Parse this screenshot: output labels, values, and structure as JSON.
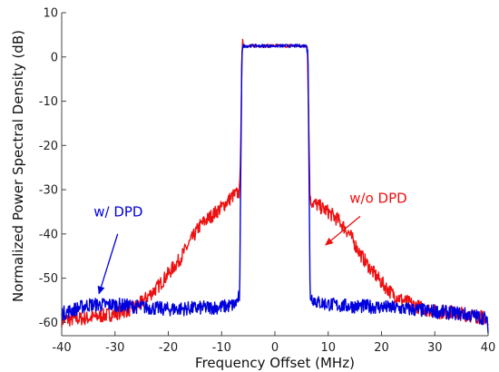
{
  "chart_data": {
    "type": "line",
    "title": "",
    "xlabel": "Frequency Offset (MHz)",
    "ylabel": "Normalized Power Spectral Density (dB)",
    "xlim": [
      -40,
      40
    ],
    "ylim": [
      -63,
      10
    ],
    "xticks": [
      -40,
      -30,
      -20,
      -10,
      0,
      10,
      20,
      30,
      40
    ],
    "yticks": [
      10,
      0,
      -10,
      -20,
      -30,
      -40,
      -50,
      -60
    ],
    "grid": false,
    "series": [
      {
        "name": "w/o DPD",
        "color": "#ee1111",
        "points": [
          [
            -40,
            -59.5
          ],
          [
            -35,
            -59
          ],
          [
            -30,
            -58
          ],
          [
            -27,
            -57
          ],
          [
            -25,
            -55.5
          ],
          [
            -22,
            -52
          ],
          [
            -20,
            -49
          ],
          [
            -18,
            -46
          ],
          [
            -16,
            -42
          ],
          [
            -14,
            -38
          ],
          [
            -12,
            -36
          ],
          [
            -10,
            -34
          ],
          [
            -8,
            -31.5
          ],
          [
            -6.6,
            -30.5
          ],
          [
            -6.1,
            2.5
          ],
          [
            6.1,
            2.5
          ],
          [
            6.6,
            -32.5
          ],
          [
            8,
            -33.5
          ],
          [
            10,
            -35
          ],
          [
            12,
            -37
          ],
          [
            14,
            -40
          ],
          [
            16,
            -44.5
          ],
          [
            18,
            -48
          ],
          [
            20,
            -51
          ],
          [
            22,
            -53.5
          ],
          [
            24,
            -55
          ],
          [
            27,
            -56.5
          ],
          [
            30,
            -57.5
          ],
          [
            35,
            -58
          ],
          [
            39.5,
            -59
          ],
          [
            40,
            -61
          ]
        ]
      },
      {
        "name": "w/ DPD",
        "color": "#0000dd",
        "points": [
          [
            -40,
            -58
          ],
          [
            -35,
            -56
          ],
          [
            -30,
            -56
          ],
          [
            -25,
            -56.5
          ],
          [
            -20,
            -57
          ],
          [
            -15,
            -56.8
          ],
          [
            -10,
            -56.5
          ],
          [
            -7.5,
            -56
          ],
          [
            -6.6,
            -54
          ],
          [
            -6.2,
            2.5
          ],
          [
            6.2,
            2.5
          ],
          [
            6.6,
            -54
          ],
          [
            8,
            -55.5
          ],
          [
            12,
            -56.2
          ],
          [
            20,
            -56.5
          ],
          [
            25,
            -57
          ],
          [
            30,
            -57.5
          ],
          [
            35,
            -58
          ],
          [
            39.5,
            -59
          ],
          [
            40,
            -61
          ]
        ]
      }
    ],
    "annotations": [
      {
        "text": "w/o DPD",
        "color": "#ee1111",
        "text_pos": [
          14,
          -33
        ],
        "arrow_from": [
          16,
          -36
        ],
        "arrow_to": [
          9.5,
          -42.5
        ]
      },
      {
        "text": "w/ DPD",
        "color": "#0000dd",
        "text_pos": [
          -34,
          -36
        ],
        "arrow_from": [
          -29.5,
          -40
        ],
        "arrow_to": [
          -33,
          -53.5
        ]
      }
    ]
  }
}
